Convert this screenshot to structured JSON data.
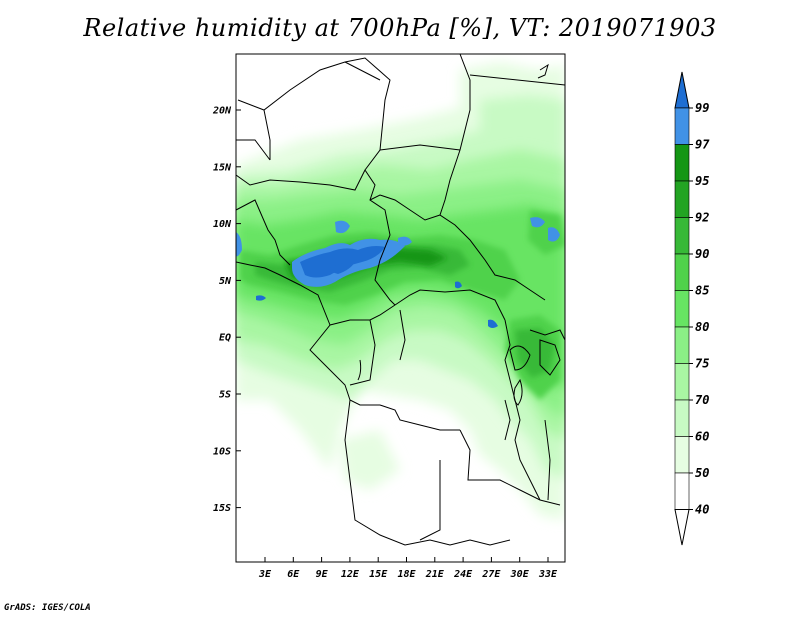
{
  "title": "Relative humidity at 700hPa [%], VT: 2019071903",
  "credit": "GrADS: IGES/COLA",
  "map": {
    "lat_ticks": [
      "20N",
      "15N",
      "10N",
      "5N",
      "EQ",
      "5S",
      "10S",
      "15S"
    ],
    "lon_ticks": [
      "3E",
      "6E",
      "9E",
      "12E",
      "15E",
      "18E",
      "21E",
      "24E",
      "27E",
      "30E",
      "33E"
    ]
  },
  "colorbar": {
    "labels": [
      "99",
      "97",
      "95",
      "92",
      "90",
      "85",
      "80",
      "75",
      "70",
      "60",
      "50",
      "40"
    ],
    "colors": [
      "#1e6ed2",
      "#4192e6",
      "#149614",
      "#23a423",
      "#37b937",
      "#50d24b",
      "#67e463",
      "#8bf086",
      "#a9f6a3",
      "#c8fac4",
      "#e6fde2",
      "#ffffff"
    ]
  },
  "colors": {
    "map_background": "#ffffff",
    "border": "#000000"
  }
}
